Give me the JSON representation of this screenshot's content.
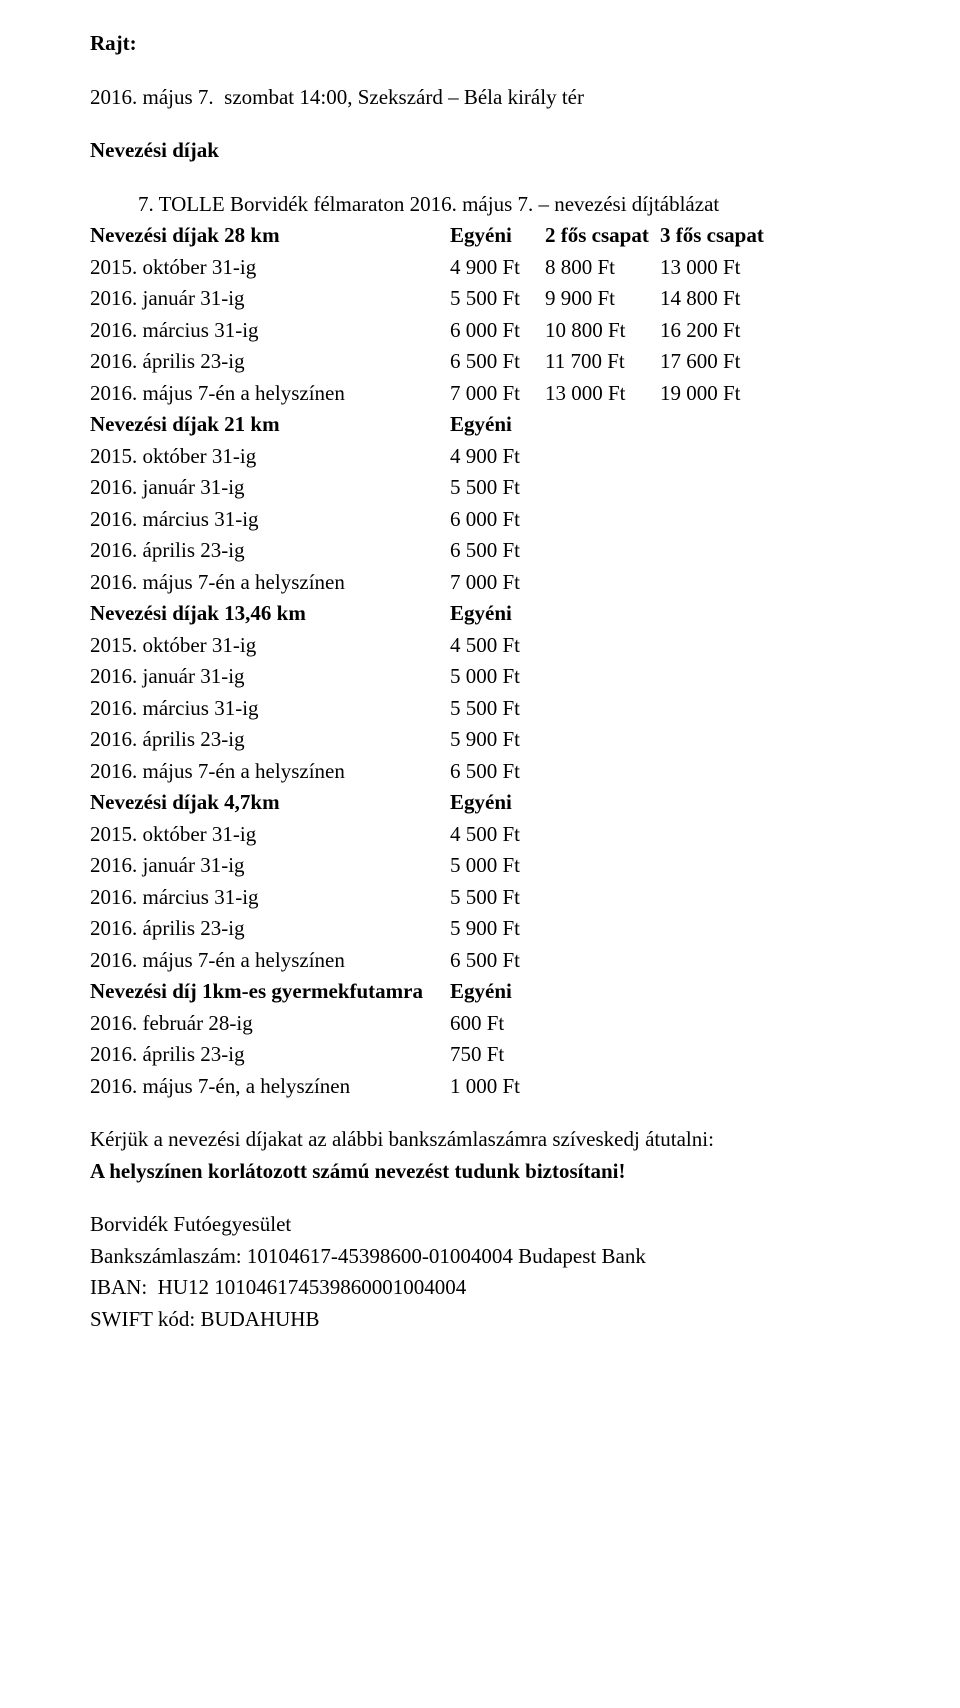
{
  "heading_rajt": "Rajt:",
  "rajt_line": "2016. május 7.  szombat 14:00, Szekszárd – Béla király tér",
  "heading_dijak": "Nevezési díjak",
  "indent_title": "7. TOLLE Borvidék félmaraton 2016. május 7. – nevezési díjtáblázat",
  "blocks": [
    {
      "header": {
        "label": "Nevezési díjak 28 km",
        "v1": "Egyéni",
        "v2": "2 fős csapat",
        "v3": "3 fős csapat"
      },
      "rows": [
        {
          "label": "2015. október 31-ig",
          "v1": "4 900 Ft",
          "v2": "8 800 Ft",
          "v3": "13 000 Ft"
        },
        {
          "label": "2016. január 31-ig",
          "v1": "5 500 Ft",
          "v2": "9 900 Ft",
          "v3": "14 800 Ft"
        },
        {
          "label": "2016. március 31-ig",
          "v1": "6 000 Ft",
          "v2": "10 800 Ft",
          "v3": "16 200 Ft"
        },
        {
          "label": "2016. április 23-ig",
          "v1": "6 500 Ft",
          "v2": "11 700 Ft",
          "v3": "17 600 Ft"
        },
        {
          "label": "2016. május 7-én a helyszínen",
          "v1": "7 000 Ft",
          "v2": "13 000 Ft",
          "v3": "19 000 Ft"
        }
      ]
    },
    {
      "header": {
        "label": " Nevezési díjak 21 km",
        "v1": "Egyéni",
        "v2": "",
        "v3": ""
      },
      "rows": [
        {
          "label": "2015. október 31-ig",
          "v1": "4 900 Ft",
          "v2": "",
          "v3": ""
        },
        {
          "label": "2016. január 31-ig",
          "v1": "5 500 Ft",
          "v2": "",
          "v3": ""
        },
        {
          "label": "2016. március 31-ig",
          "v1": "6 000 Ft",
          "v2": "",
          "v3": ""
        },
        {
          "label": "2016. április 23-ig",
          "v1": "6 500 Ft",
          "v2": "",
          "v3": ""
        },
        {
          "label": "2016. május 7-én a helyszínen",
          "v1": "7 000 Ft",
          "v2": "",
          "v3": ""
        }
      ]
    },
    {
      "header": {
        "label": "Nevezési díjak 13,46 km",
        "v1": "Egyéni",
        "v2": "",
        "v3": ""
      },
      "rows": [
        {
          "label": "2015. október 31-ig",
          "v1": "4 500 Ft",
          "v2": "",
          "v3": ""
        },
        {
          "label": "2016. január 31-ig",
          "v1": "5 000 Ft",
          "v2": "",
          "v3": ""
        },
        {
          "label": "2016. március 31-ig",
          "v1": "5 500 Ft",
          "v2": "",
          "v3": ""
        },
        {
          "label": "2016. április 23-ig",
          "v1": "5 900 Ft",
          "v2": "",
          "v3": ""
        },
        {
          "label": "2016. május 7-én a helyszínen",
          "v1": "6 500 Ft",
          "v2": "",
          "v3": ""
        }
      ]
    },
    {
      "header": {
        "label": "Nevezési díjak 4,7km",
        "v1": "Egyéni",
        "v2": "",
        "v3": ""
      },
      "rows": [
        {
          "label": "2015. október 31-ig",
          "v1": "4 500 Ft",
          "v2": "",
          "v3": ""
        },
        {
          "label": "2016. január 31-ig",
          "v1": "5 000 Ft",
          "v2": "",
          "v3": ""
        },
        {
          "label": "2016. március 31-ig",
          "v1": "5 500 Ft",
          "v2": "",
          "v3": ""
        },
        {
          "label": "2016. április 23-ig",
          "v1": "5 900 Ft",
          "v2": "",
          "v3": ""
        },
        {
          "label": "2016. május 7-én a helyszínen",
          "v1": "6 500 Ft",
          "v2": "",
          "v3": ""
        }
      ]
    },
    {
      "header": {
        "label": "Nevezési díj 1km-es gyermekfutamra",
        "v1": "Egyéni",
        "v2": "",
        "v3": ""
      },
      "rows": [
        {
          "label": "2016. február 28-ig",
          "v1": "600 Ft",
          "v2": "",
          "v3": ""
        },
        {
          "label": "2016. április 23-ig",
          "v1": "750 Ft",
          "v2": "",
          "v3": ""
        },
        {
          "label": "2016. május 7-én, a helyszínen",
          "v1": "1 000 Ft",
          "v2": "",
          "v3": ""
        }
      ]
    }
  ],
  "footer": {
    "l1": "Kérjük a nevezési díjakat az alábbi bankszámlaszámra szíveskedj átutalni:",
    "l2": "A helyszínen korlátozott számú nevezést tudunk biztosítani!",
    "l3": "Borvidék Futóegyesület",
    "l4": "Bankszámlaszám: 10104617-45398600-01004004 Budapest Bank",
    "l5": "IBAN:  HU12 101046174539860001004004",
    "l6": "SWIFT kód: BUDAHUHB"
  }
}
